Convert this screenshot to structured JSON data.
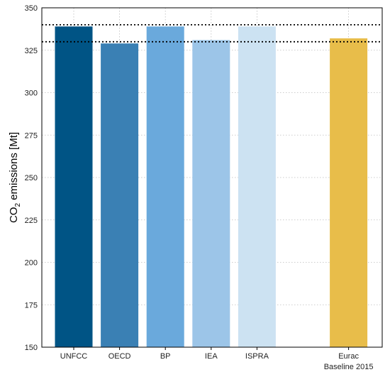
{
  "chart_data": {
    "type": "bar",
    "title": "",
    "xlabel": "",
    "ylabel": {
      "prefix": "CO",
      "subscript": "2",
      "suffix": " emissions [Mt]"
    },
    "ylim": [
      150,
      350
    ],
    "yticks": [
      150,
      175,
      200,
      225,
      250,
      275,
      300,
      325,
      350
    ],
    "categories": [
      {
        "lines": [
          "UNFCC"
        ],
        "slot": 0
      },
      {
        "lines": [
          "OECD"
        ],
        "slot": 1
      },
      {
        "lines": [
          "BP"
        ],
        "slot": 2
      },
      {
        "lines": [
          "IEA"
        ],
        "slot": 3
      },
      {
        "lines": [
          "ISPRA"
        ],
        "slot": 4
      },
      {
        "lines": [
          "Eurac",
          "Baseline 2015"
        ],
        "slot": 6
      }
    ],
    "values": [
      339,
      329,
      339,
      331,
      339,
      332
    ],
    "colors": [
      "#005485",
      "#3a80b4",
      "#6aa9dc",
      "#9cc5e8",
      "#cce2f2",
      "#e8bd4a"
    ],
    "reference_lines": [
      340,
      330
    ],
    "grid": true
  }
}
